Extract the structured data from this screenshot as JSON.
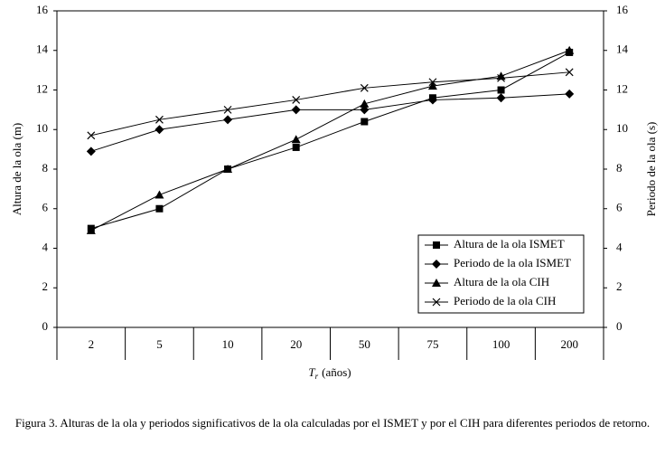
{
  "chart_data": {
    "type": "line",
    "categories": [
      "2",
      "5",
      "10",
      "20",
      "50",
      "75",
      "100",
      "200"
    ],
    "ylabel": "Altura de la ola (m)",
    "y2label": "Periodo de la ola (s)",
    "xlabel": {
      "symbol": "T",
      "subscript": "r",
      "text": "(años)"
    },
    "ylim": [
      0,
      16
    ],
    "yticks": [
      0,
      2,
      4,
      6,
      8,
      10,
      12,
      14,
      16
    ],
    "y2lim": [
      0,
      16
    ],
    "y2ticks": [
      0,
      2,
      4,
      6,
      8,
      10,
      12,
      14,
      16
    ],
    "series": [
      {
        "name": "Altura de la ola ISMET",
        "color": "#000000",
        "marker": "square",
        "values": [
          5.0,
          6.0,
          8.0,
          9.1,
          10.4,
          11.6,
          12.0,
          13.9
        ]
      },
      {
        "name": "Periodo de la ola ISMET",
        "color": "#000000",
        "marker": "diamond",
        "axis": "y2",
        "values": [
          8.9,
          10.0,
          10.5,
          11.0,
          11.0,
          11.5,
          11.6,
          11.8
        ]
      },
      {
        "name": "Altura de la ola CIH",
        "color": "#000000",
        "marker": "triangle",
        "values": [
          4.9,
          6.7,
          8.0,
          9.5,
          11.3,
          12.2,
          12.7,
          14.0
        ]
      },
      {
        "name": "Periodo de la ola CIH",
        "color": "#000000",
        "marker": "x",
        "axis": "y2",
        "values": [
          9.7,
          10.5,
          11.0,
          11.5,
          12.1,
          12.4,
          12.6,
          12.9
        ]
      }
    ],
    "caption": "Figura 3. Alturas de la ola y periodos significativos de la ola calculadas por el ISMET y por el CIH para diferentes periodos de retorno."
  }
}
